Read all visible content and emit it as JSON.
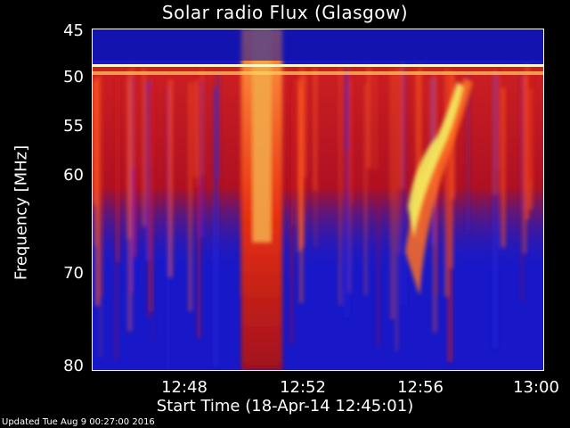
{
  "chart_data": {
    "type": "heatmap",
    "title": "Solar radio Flux (Glasgow)",
    "xlabel": "Start Time (18-Apr-14 12:45:01)",
    "ylabel": "Frequency [MHz]",
    "x_ticks": [
      "12:48",
      "12:52",
      "12:56",
      "13:00"
    ],
    "y_ticks": [
      "45",
      "50",
      "55",
      "60",
      "70",
      "80"
    ],
    "colors": {
      "background": "#1a1acc",
      "low": "#0000aa",
      "mid": "#e01010",
      "high": "#ff9940",
      "peak": "#f0f050"
    },
    "features": [
      {
        "name": "broadband burst",
        "time": "12:50-12:51",
        "freq": "45-80"
      },
      {
        "name": "drifting burst",
        "time": "12:55-12:58",
        "freq": "50-80"
      }
    ]
  },
  "footer": "Updated Tue Aug  9 00:27:00 2016"
}
